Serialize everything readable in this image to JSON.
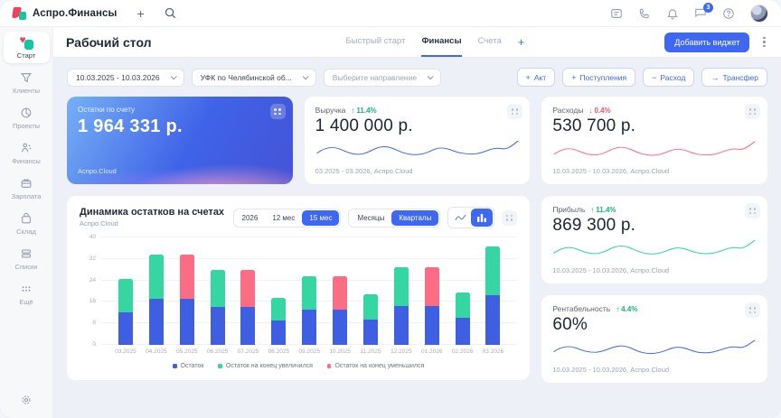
{
  "app": {
    "brand": "Аспро.Финансы"
  },
  "topbar": {
    "chat_badge": "3"
  },
  "sidebar": {
    "items": [
      {
        "label": "Старт"
      },
      {
        "label": "Клиенты"
      },
      {
        "label": "Проекты"
      },
      {
        "label": "Финансы"
      },
      {
        "label": "Зарплата"
      },
      {
        "label": "Склад"
      },
      {
        "label": "Списки"
      },
      {
        "label": "Ещё"
      }
    ]
  },
  "header": {
    "title": "Рабочий стол",
    "tabs": [
      {
        "label": "Быстрый старт"
      },
      {
        "label": "Финансы"
      },
      {
        "label": "Счета"
      }
    ],
    "add_tab": "+",
    "add_widget": "Добавить виджет"
  },
  "filters": {
    "date_range": "10.03.2025 - 10.03.2026",
    "account": "УФК по Челябинской об...",
    "direction_placeholder": "Выберите направление"
  },
  "actions": [
    {
      "icon": "+",
      "label": "Акт"
    },
    {
      "icon": "+",
      "label": "Поступления"
    },
    {
      "icon": "−",
      "label": "Расход"
    },
    {
      "icon": "→",
      "label": "Трансфер"
    }
  ],
  "cards": {
    "balance": {
      "label": "Остатки по счету",
      "value": "1 964 331 р.",
      "brand": "Аспро.Cloud"
    },
    "revenue": {
      "label": "Выручка",
      "delta_arrow": "↑",
      "delta": "11.4%",
      "value": "1 400 000 р.",
      "period": "03.2025 - 03.2026, Аспро.Cloud"
    },
    "expenses": {
      "label": "Расходы",
      "delta_arrow": "↓",
      "delta": "0.4%",
      "value": "530 700 р.",
      "period": "10.03.2025 - 10.03.2026, Аспро.Cloud"
    },
    "profit": {
      "label": "Прибыль",
      "delta_arrow": "↑",
      "delta": "11.4%",
      "value": "869 300 р.",
      "period": "10.03.2025 - 10.03.2026, Аспро.Cloud"
    },
    "margin": {
      "label": "Рентабельность",
      "delta_arrow": "↑",
      "delta": "4.4%",
      "value": "60%",
      "period": "10.03.2025 - 10.03.2026, Аспро.Cloud"
    }
  },
  "chart": {
    "title": "Динамика остатков на счетах",
    "subtitle": "Аспро.Cloud",
    "ranges": [
      "2026",
      "12 мес",
      "15 мес"
    ],
    "active_range": "15 мес",
    "groups": [
      "Месяцы",
      "Кварталы"
    ],
    "active_group": "Кварталы"
  },
  "chart_data": {
    "type": "bar",
    "stacked": true,
    "categories": [
      "03.2025",
      "04.2025",
      "05.2025",
      "06.2025",
      "07.2025",
      "08.2025",
      "09.2025",
      "10.2025",
      "11.2025",
      "12.2025",
      "01.2026",
      "02.2026",
      "03.2026"
    ],
    "series": [
      {
        "name": "Остаток",
        "color": "#3f5fe3",
        "values": [
          12,
          17,
          17,
          14,
          14,
          9,
          13,
          13,
          9.5,
          14.5,
          14.5,
          10,
          18.5
        ]
      },
      {
        "name": "Остаток на конец увеличился",
        "color": "#35d6a2",
        "values": [
          12.5,
          16.5,
          0,
          14,
          0,
          8.5,
          12.5,
          0,
          9.5,
          14.5,
          0,
          9.5,
          18
        ]
      },
      {
        "name": "Остаток на конец уменьшился",
        "color": "#fb6d85",
        "values": [
          0,
          0,
          16.5,
          0,
          14,
          0,
          0,
          12.5,
          0,
          0,
          14.5,
          0,
          0
        ]
      }
    ],
    "ylim": [
      0,
      40
    ],
    "yticks": [
      0,
      8,
      16,
      24,
      32,
      40
    ],
    "grid": true,
    "legend_position": "bottom"
  },
  "colors": {
    "accent": "#3f68f2",
    "revenue_line": "#3f68f2",
    "expenses_line": "#fb6d85",
    "profit_line": "#2fd6a0",
    "margin_line": "#3f68f2",
    "delta_up": "#19b37e",
    "delta_down": "#f4516c"
  }
}
